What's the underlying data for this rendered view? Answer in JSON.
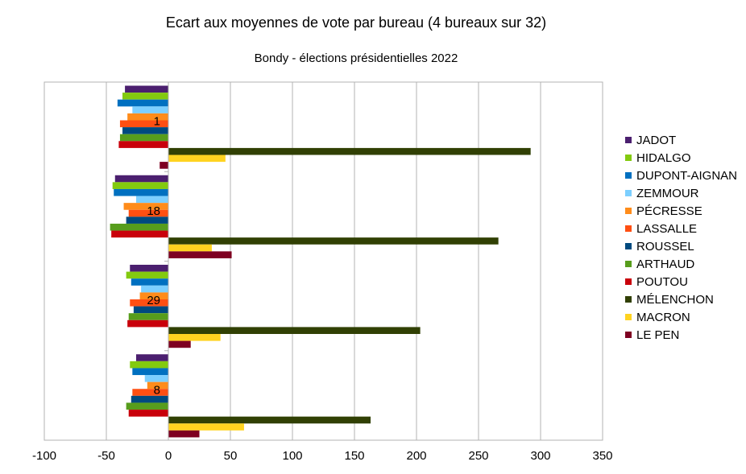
{
  "chart_data": {
    "type": "bar",
    "orientation": "horizontal",
    "title": "Ecart aux moyennes de vote par bureau (4 bureaux sur 32)",
    "subtitle": "Bondy - élections présidentielles 2022",
    "categories": [
      "1",
      "18",
      "29",
      "8"
    ],
    "xlim": [
      -100,
      350
    ],
    "x_ticks": [
      "-100",
      "-50",
      "0",
      "50",
      "100",
      "150",
      "200",
      "250",
      "300",
      "350"
    ],
    "grid": "vertical",
    "legend_position": "right",
    "series": [
      {
        "name": "JADOT",
        "color": "#4b1f6f",
        "values": [
          -35,
          -43,
          -31,
          -26
        ]
      },
      {
        "name": "HIDALGO",
        "color": "#83ca0f",
        "values": [
          -37,
          -45,
          -34,
          -31
        ]
      },
      {
        "name": "DUPONT-AIGNAN",
        "color": "#0070c0",
        "values": [
          -41,
          -44,
          -30,
          -29
        ]
      },
      {
        "name": "ZEMMOUR",
        "color": "#7ccfff",
        "values": [
          -29,
          -26,
          -22,
          -19
        ]
      },
      {
        "name": "PÉCRESSE",
        "color": "#ff8c1a",
        "values": [
          -33,
          -36,
          -23,
          -17
        ]
      },
      {
        "name": "LASSALLE",
        "color": "#ff4f12",
        "values": [
          -39,
          -32,
          -31,
          -29
        ]
      },
      {
        "name": "ROUSSEL",
        "color": "#004a7f",
        "values": [
          -37,
          -34,
          -28,
          -30
        ]
      },
      {
        "name": "ARTHAUD",
        "color": "#579d1c",
        "values": [
          -39,
          -47,
          -32,
          -34
        ]
      },
      {
        "name": "POUTOU",
        "color": "#c9000b",
        "values": [
          -40,
          -46,
          -33,
          -32
        ]
      },
      {
        "name": "MÉLENCHON",
        "color": "#314004",
        "values": [
          292,
          266,
          203,
          163
        ]
      },
      {
        "name": "MACRON",
        "color": "#ffd320",
        "values": [
          46,
          35,
          42,
          61
        ]
      },
      {
        "name": "LE PEN",
        "color": "#7e0021",
        "values": [
          -7,
          51,
          18,
          25
        ]
      }
    ]
  }
}
